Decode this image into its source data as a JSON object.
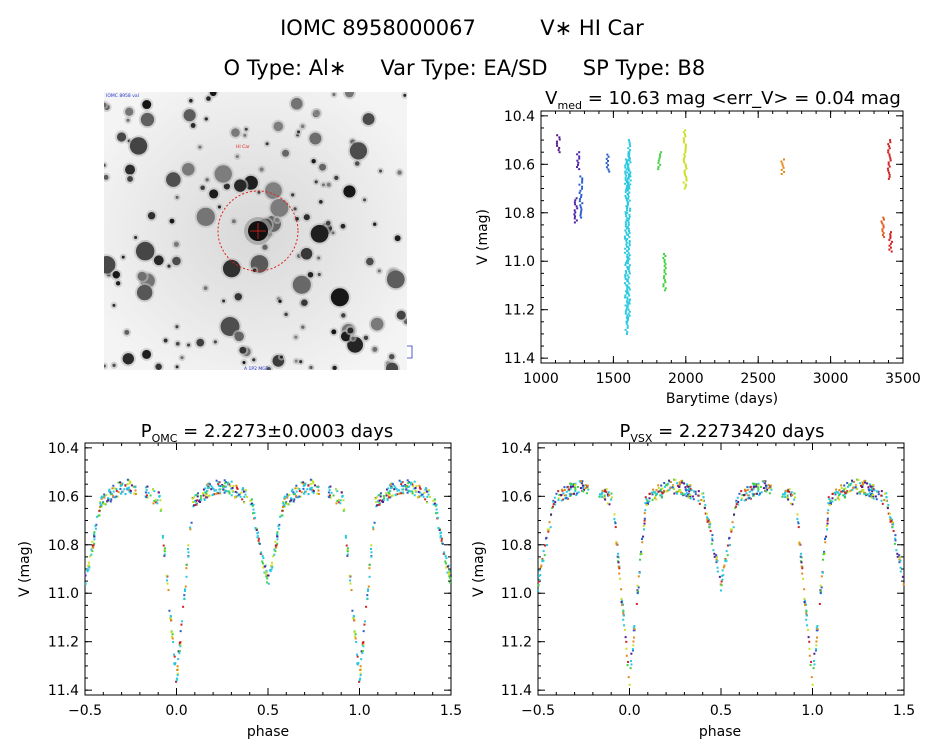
{
  "header": {
    "line1_name": "IOMC 8958000067",
    "line1_star": "V∗ HI Car",
    "line2_otype": "O Type: Al∗",
    "line2_vartype": "Var Type: EA/SD",
    "line2_sptype": "SP Type: B8"
  },
  "finder": {
    "corner_label_tl": "IOMC 8958 val",
    "target_label": "HI Car",
    "bottom_label": "A 1P2 MGP"
  },
  "colors": {
    "axis": "#000000",
    "frame_background": "#ffffff",
    "circle": "#e0201a"
  },
  "chart_data": [
    {
      "id": "lightcurve",
      "type": "scatter",
      "title_main": "V",
      "title_sub": "med",
      "title_rest": " = 10.63 mag <err_V> = 0.04 mag",
      "xlabel": "Barytime (days)",
      "ylabel": "V (mag)",
      "xlim": [
        1000,
        3500
      ],
      "ylim": [
        11.42,
        10.38
      ],
      "xticks": [
        1000,
        1500,
        2000,
        2500,
        3000,
        3500
      ],
      "xtick_labels": [
        "1000",
        "1500",
        "2000",
        "2500",
        "3000",
        "3500"
      ],
      "yticks": [
        10.4,
        10.6,
        10.8,
        11.0,
        11.2,
        11.4
      ],
      "ytick_labels": [
        "10.4",
        "10.6",
        "10.8",
        "11.0",
        "11.2",
        "11.4"
      ],
      "series": [
        {
          "name": "s1",
          "color": "#5a1a8a",
          "points": [
            [
              1120,
              10.48
            ],
            [
              1120,
              10.55
            ]
          ]
        },
        {
          "name": "s2",
          "color": "#4a23a8",
          "points": [
            [
              1240,
              10.74
            ],
            [
              1240,
              10.84
            ],
            [
              1255,
              10.55
            ],
            [
              1255,
              10.62
            ]
          ]
        },
        {
          "name": "s3",
          "color": "#2a5ccc",
          "points": [
            [
              1275,
              10.65
            ],
            [
              1275,
              10.82
            ],
            [
              1462,
              10.56
            ],
            [
              1462,
              10.63
            ]
          ]
        },
        {
          "name": "s4",
          "color": "#28c8e0",
          "points": [
            [
              1590,
              10.58
            ],
            [
              1590,
              11.3
            ],
            [
              1605,
              10.55
            ],
            [
              1605,
              11.25
            ],
            [
              1610,
              10.5
            ],
            [
              1610,
              10.7
            ]
          ]
        },
        {
          "name": "s5",
          "color": "#40d040",
          "points": [
            [
              1820,
              10.55
            ],
            [
              1820,
              10.62
            ],
            [
              1855,
              10.97
            ],
            [
              1855,
              11.12
            ]
          ]
        },
        {
          "name": "s6",
          "color": "#c8e020",
          "points": [
            [
              1995,
              10.46
            ],
            [
              1995,
              10.7
            ]
          ]
        },
        {
          "name": "s7",
          "color": "#e08a18",
          "points": [
            [
              2670,
              10.58
            ],
            [
              2670,
              10.64
            ]
          ]
        },
        {
          "name": "s8",
          "color": "#e05a18",
          "points": [
            [
              3360,
              10.82
            ],
            [
              3360,
              10.9
            ]
          ]
        },
        {
          "name": "s9",
          "color": "#d02020",
          "points": [
            [
              3405,
              10.5
            ],
            [
              3405,
              10.66
            ],
            [
              3415,
              10.88
            ],
            [
              3415,
              10.96
            ]
          ]
        }
      ]
    },
    {
      "id": "phase_omc",
      "type": "scatter",
      "title_main": "P",
      "title_sub": "OMC",
      "title_rest": " = 2.2273±0.0003 days",
      "xlabel": "phase",
      "ylabel": "V (mag)",
      "xlim": [
        -0.5,
        1.5
      ],
      "ylim": [
        11.42,
        10.38
      ],
      "xticks": [
        -0.5,
        0.0,
        0.5,
        1.0,
        1.5
      ],
      "xtick_labels": [
        "−0.5",
        "0.0",
        "0.5",
        "1.0",
        "1.5"
      ],
      "yticks": [
        10.4,
        10.6,
        10.8,
        11.0,
        11.2,
        11.4
      ],
      "ytick_labels": [
        "10.4",
        "10.6",
        "10.8",
        "11.0",
        "11.2",
        "11.4"
      ],
      "period_days": 2.2273
    },
    {
      "id": "phase_vsx",
      "type": "scatter",
      "title_main": "P",
      "title_sub": "VSX",
      "title_rest": " = 2.2273420 days",
      "xlabel": "phase",
      "ylabel": "V (mag)",
      "xlim": [
        -0.5,
        1.5
      ],
      "ylim": [
        11.42,
        10.38
      ],
      "xticks": [
        -0.5,
        0.0,
        0.5,
        1.0,
        1.5
      ],
      "xtick_labels": [
        "−0.5",
        "0.0",
        "0.5",
        "1.0",
        "1.5"
      ],
      "yticks": [
        10.4,
        10.6,
        10.8,
        11.0,
        11.2,
        11.4
      ],
      "ytick_labels": [
        "10.4",
        "10.6",
        "10.8",
        "11.0",
        "11.2",
        "11.4"
      ],
      "period_days": 2.227342
    }
  ]
}
